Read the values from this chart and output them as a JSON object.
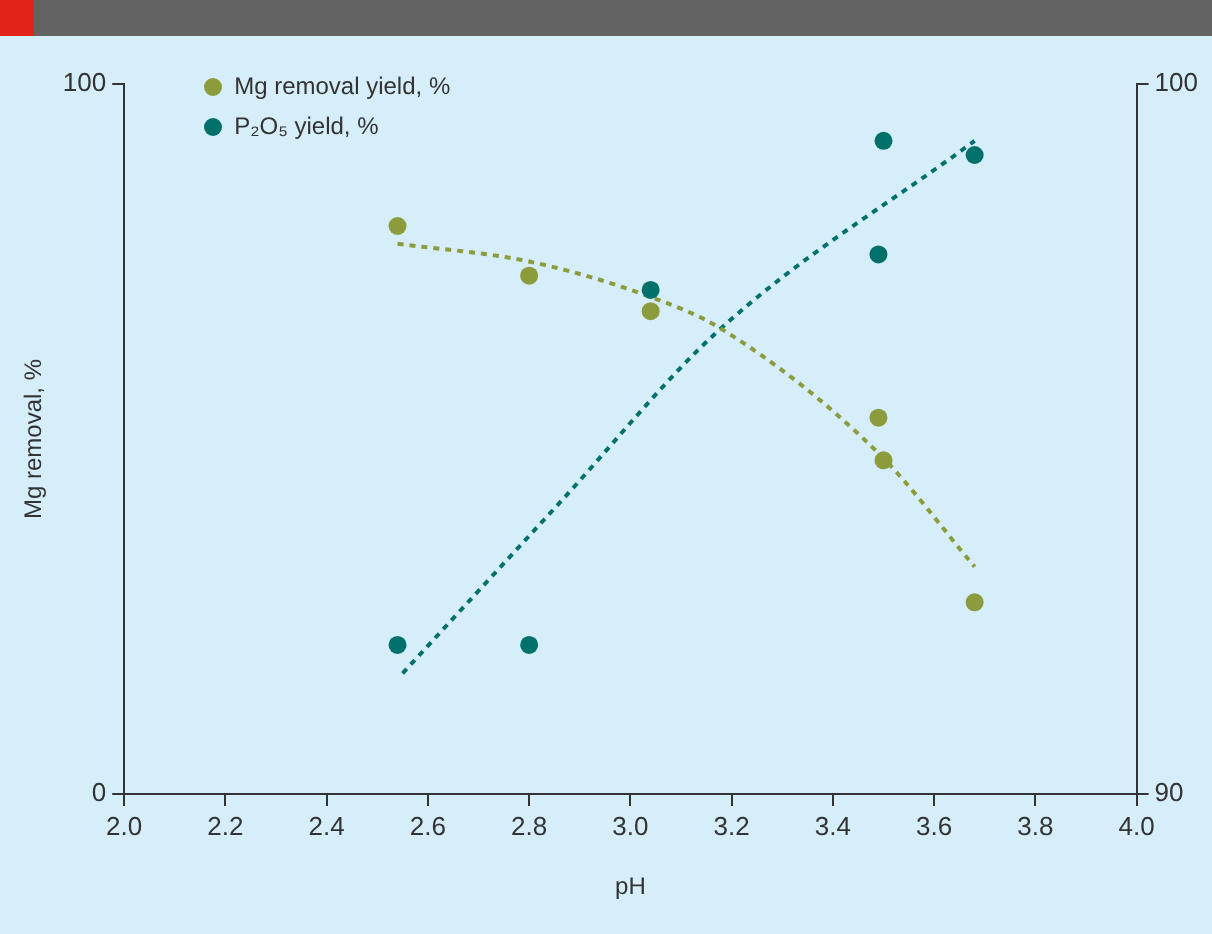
{
  "chart_data": {
    "type": "scatter",
    "xlabel": "pH",
    "ylabel": "Mg removal, %",
    "xlim": [
      2.0,
      4.0
    ],
    "xticks": [
      {
        "value": 2.0,
        "label": "2.0"
      },
      {
        "value": 2.2,
        "label": "2.2"
      },
      {
        "value": 2.4,
        "label": "2.4"
      },
      {
        "value": 2.6,
        "label": "2.6"
      },
      {
        "value": 2.8,
        "label": "2.8"
      },
      {
        "value": 3.0,
        "label": "3.0"
      },
      {
        "value": 3.2,
        "label": "3.2"
      },
      {
        "value": 3.4,
        "label": "3.4"
      },
      {
        "value": 3.6,
        "label": "3.6"
      },
      {
        "value": 3.8,
        "label": "3.8"
      },
      {
        "value": 4.0,
        "label": "4.0"
      }
    ],
    "ylim": [
      0,
      100
    ],
    "yticks": [
      0,
      100
    ],
    "y2lim": [
      90,
      100
    ],
    "y2ticks": [
      90,
      100
    ],
    "grid": false,
    "legend": "top left",
    "marker": "circle",
    "series": [
      {
        "name": "Mg removal yield, %",
        "color": "#8c9b3b",
        "x": [
          2.54,
          2.8,
          3.04,
          3.49,
          3.5,
          3.68
        ],
        "values": [
          80,
          73,
          68,
          53,
          47,
          27
        ]
      },
      {
        "name": "P₂O₅ yield, %",
        "axis": "y2",
        "color": "#00706b",
        "x": [
          2.54,
          2.8,
          3.04,
          3.49,
          3.5,
          3.68
        ],
        "values": [
          92.1,
          92.1,
          97.1,
          97.6,
          99.2,
          99.0
        ]
      },
      {
        "type": "line",
        "marker": "none",
        "color": "#8c9b3b",
        "line_style": "dashed",
        "x": [
          2.54,
          2.8,
          3.04,
          3.18,
          3.49,
          3.68
        ],
        "values": [
          77.5,
          75,
          70,
          65.5,
          48,
          32
        ]
      },
      {
        "type": "line",
        "marker": "none",
        "axis": "y2",
        "color": "#00706b",
        "line_style": "dashed",
        "x": [
          2.55,
          2.86,
          3.17,
          3.68
        ],
        "values": [
          91.7,
          94.1,
          96.5,
          99.2
        ]
      }
    ]
  }
}
